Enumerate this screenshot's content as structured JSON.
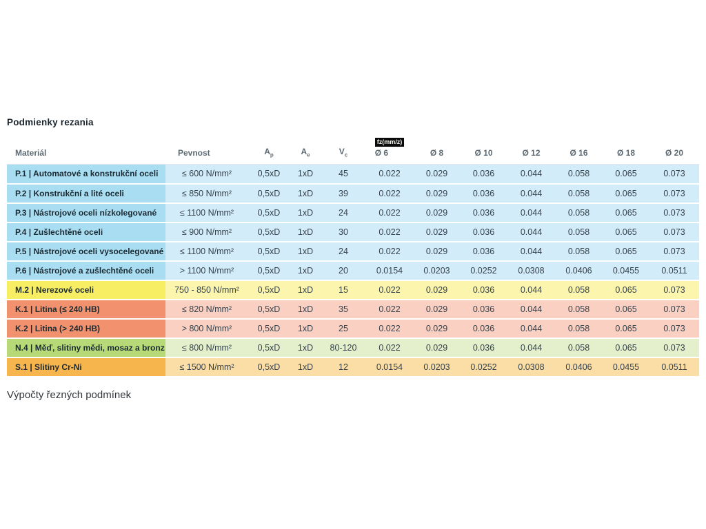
{
  "page": {
    "title": "Podmienky rezania",
    "footer": "Výpočty řezných podmínek"
  },
  "table": {
    "feed_badge": "fz(mm/z)",
    "headers": {
      "material": "Materiál",
      "strength": "Pevnost",
      "ap_base": "A",
      "ap_sub": "p",
      "ae_base": "A",
      "ae_sub": "e",
      "vc_base": "V",
      "vc_sub": "c",
      "diameters": [
        "Ø 6",
        "Ø 8",
        "Ø 10",
        "Ø 12",
        "Ø 16",
        "Ø 18",
        "Ø 20"
      ]
    },
    "colors": {
      "blue": {
        "cell": "#a9ddf2",
        "tint": "#d3ecf9"
      },
      "yellow": {
        "cell": "#f7ee64",
        "tint": "#fbf5ae"
      },
      "salmon": {
        "cell": "#f2916e",
        "tint": "#f9d0c2"
      },
      "green": {
        "cell": "#b8d977",
        "tint": "#e4f0cc"
      },
      "orange": {
        "cell": "#f7b54e",
        "tint": "#fbdda6"
      },
      "badge_bg": "#0a0a0a",
      "badge_text": "#fdfcf5"
    },
    "rows": [
      {
        "material": "P.1 | Automatové a konstrukční oceli",
        "strength": "≤ 600 N/mm²",
        "ap": "0,5xD",
        "ae": "1xD",
        "vc": "45",
        "feeds": [
          "0.022",
          "0.029",
          "0.036",
          "0.044",
          "0.058",
          "0.065",
          "0.073"
        ],
        "color": "blue"
      },
      {
        "material": "P.2 | Konstrukční a lité oceli",
        "strength": "≤ 850 N/mm²",
        "ap": "0,5xD",
        "ae": "1xD",
        "vc": "39",
        "feeds": [
          "0.022",
          "0.029",
          "0.036",
          "0.044",
          "0.058",
          "0.065",
          "0.073"
        ],
        "color": "blue"
      },
      {
        "material": "P.3 | Nástrojové oceli nízkolegované",
        "strength": "≤ 1100 N/mm²",
        "ap": "0,5xD",
        "ae": "1xD",
        "vc": "24",
        "feeds": [
          "0.022",
          "0.029",
          "0.036",
          "0.044",
          "0.058",
          "0.065",
          "0.073"
        ],
        "color": "blue"
      },
      {
        "material": "P.4 | Zušlechtěné oceli",
        "strength": "≤ 900 N/mm²",
        "ap": "0,5xD",
        "ae": "1xD",
        "vc": "30",
        "feeds": [
          "0.022",
          "0.029",
          "0.036",
          "0.044",
          "0.058",
          "0.065",
          "0.073"
        ],
        "color": "blue"
      },
      {
        "material": "P.5 | Nástrojové oceli vysocelegované",
        "strength": "≤ 1100 N/mm²",
        "ap": "0,5xD",
        "ae": "1xD",
        "vc": "24",
        "feeds": [
          "0.022",
          "0.029",
          "0.036",
          "0.044",
          "0.058",
          "0.065",
          "0.073"
        ],
        "color": "blue"
      },
      {
        "material": "P.6 | Nástrojové a zušlechtěné oceli",
        "strength": "> 1100 N/mm²",
        "ap": "0,5xD",
        "ae": "1xD",
        "vc": "20",
        "feeds": [
          "0.0154",
          "0.0203",
          "0.0252",
          "0.0308",
          "0.0406",
          "0.0455",
          "0.0511"
        ],
        "color": "blue"
      },
      {
        "material": "M.2 | Nerezové oceli",
        "strength": "750 - 850 N/mm²",
        "ap": "0,5xD",
        "ae": "1xD",
        "vc": "15",
        "feeds": [
          "0.022",
          "0.029",
          "0.036",
          "0.044",
          "0.058",
          "0.065",
          "0.073"
        ],
        "color": "yellow"
      },
      {
        "material": "K.1 | Litina (≤ 240 HB)",
        "strength": "≤ 820 N/mm²",
        "ap": "0,5xD",
        "ae": "1xD",
        "vc": "35",
        "feeds": [
          "0.022",
          "0.029",
          "0.036",
          "0.044",
          "0.058",
          "0.065",
          "0.073"
        ],
        "color": "salmon"
      },
      {
        "material": "K.2 | Litina (> 240 HB)",
        "strength": "> 800 N/mm²",
        "ap": "0,5xD",
        "ae": "1xD",
        "vc": "25",
        "feeds": [
          "0.022",
          "0.029",
          "0.036",
          "0.044",
          "0.058",
          "0.065",
          "0.073"
        ],
        "color": "salmon"
      },
      {
        "material": "N.4 | Měď, slitiny mědi, mosaz a bronz",
        "strength": "≤ 800 N/mm²",
        "ap": "0,5xD",
        "ae": "1xD",
        "vc": "80-120",
        "feeds": [
          "0.022",
          "0.029",
          "0.036",
          "0.044",
          "0.058",
          "0.065",
          "0.073"
        ],
        "color": "green"
      },
      {
        "material": "S.1 | Slitiny Cr-Ni",
        "strength": "≤ 1500 N/mm²",
        "ap": "0,5xD",
        "ae": "1xD",
        "vc": "12",
        "feeds": [
          "0.0154",
          "0.0203",
          "0.0252",
          "0.0308",
          "0.0406",
          "0.0455",
          "0.0511"
        ],
        "color": "orange"
      }
    ]
  }
}
